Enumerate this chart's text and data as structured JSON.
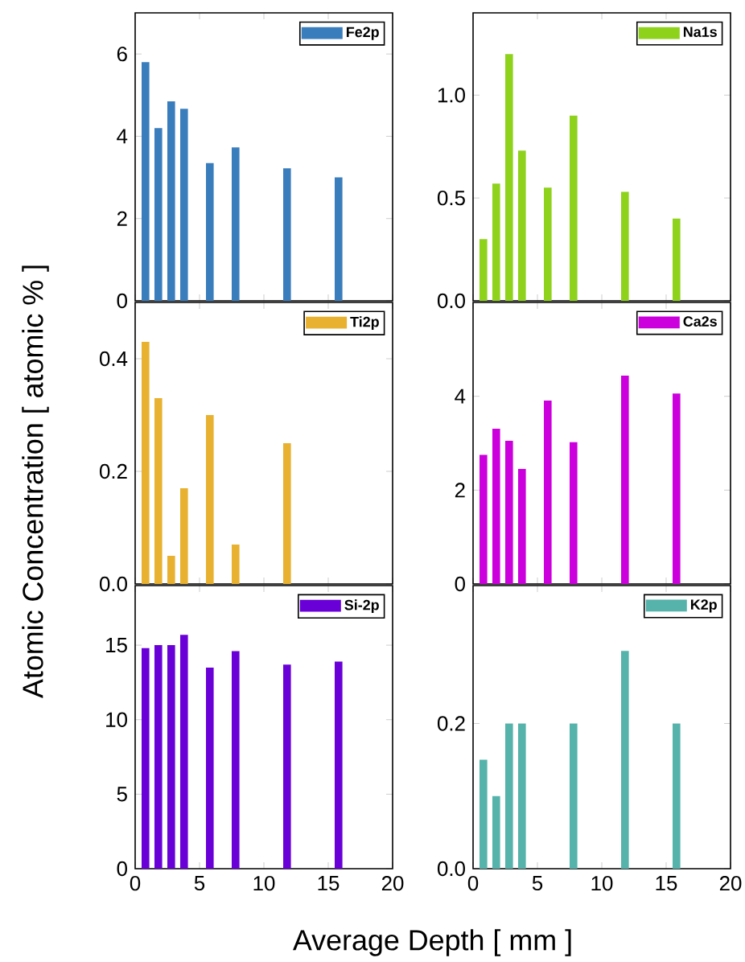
{
  "chart_data": [
    {
      "type": "bar",
      "x": [
        0.8,
        1.8,
        2.8,
        3.8,
        5.8,
        7.8,
        11.8,
        15.8
      ],
      "xlim": [
        0,
        20
      ],
      "xticks": [
        0,
        5,
        10,
        15,
        20
      ],
      "ylim": [
        0,
        7
      ],
      "yticks": [
        0,
        2,
        4,
        6
      ],
      "tick_labels": "y",
      "legend": "top right",
      "series": [
        {
          "name": "Fe2p",
          "color": "#3a7dbd",
          "values": [
            5.8,
            4.2,
            4.85,
            4.67,
            3.35,
            3.73,
            3.22,
            3.0
          ]
        }
      ]
    },
    {
      "type": "bar",
      "x": [
        0.8,
        1.8,
        2.8,
        3.8,
        5.8,
        7.8,
        11.8,
        15.8
      ],
      "xlim": [
        0,
        20
      ],
      "xticks": [
        0,
        5,
        10,
        15,
        20
      ],
      "ylim": [
        0,
        1.4
      ],
      "yticks": [
        {
          "value": 0,
          "label": "0.0"
        },
        {
          "value": 0.5,
          "label": "0.5"
        },
        {
          "value": 1,
          "label": "1.0"
        }
      ],
      "tick_labels": "y",
      "legend": "top right",
      "series": [
        {
          "name": "Na1s",
          "color": "#8ed21c",
          "values": [
            0.3,
            0.57,
            1.2,
            0.73,
            0.55,
            0.9,
            0.53,
            0.4
          ]
        }
      ]
    },
    {
      "type": "bar",
      "xlim": [
        0,
        20
      ],
      "xticks": [
        0,
        5,
        10,
        15,
        20
      ],
      "ylim": [
        0,
        0.5
      ],
      "yticks": [
        {
          "value": 0,
          "label": "0.0"
        },
        {
          "value": 0.2,
          "label": "0.2"
        },
        {
          "value": 0.4,
          "label": "0.4"
        }
      ],
      "tick_labels": "y",
      "legend": "top right",
      "ylabel": "Atomic Concentration [ atomic % ]",
      "series": [
        {
          "name": "Ti2p",
          "color": "#e8b130",
          "x": [
            0.8,
            1.8,
            2.8,
            3.8,
            5.8,
            7.8,
            11.8
          ],
          "values": [
            0.43,
            0.33,
            0.05,
            0.17,
            0.3,
            0.07,
            0.25
          ]
        }
      ]
    },
    {
      "type": "bar",
      "x": [
        0.8,
        1.8,
        2.8,
        3.8,
        5.8,
        7.8,
        11.8,
        15.8
      ],
      "xlim": [
        0,
        20
      ],
      "xticks": [
        0,
        5,
        10,
        15,
        20
      ],
      "ylim": [
        0,
        6
      ],
      "yticks": [
        0,
        2,
        4
      ],
      "tick_labels": "y",
      "legend": "top right",
      "series": [
        {
          "name": "Ca2s",
          "color": "#cc00dd",
          "values": [
            2.75,
            3.31,
            3.05,
            2.45,
            3.91,
            3.02,
            4.44,
            4.06
          ]
        }
      ]
    },
    {
      "type": "bar",
      "x": [
        0.8,
        1.8,
        2.8,
        3.8,
        5.8,
        7.8,
        11.8,
        15.8
      ],
      "xlim": [
        0,
        20
      ],
      "xticks": [
        0,
        5,
        10,
        15,
        20
      ],
      "ylim": [
        0,
        19
      ],
      "yticks": [
        0,
        5,
        10,
        15
      ],
      "legend": "top right",
      "xlabel": "Average Depth [ mm ]",
      "series": [
        {
          "name": "Si-2p",
          "color": "#6a00d8",
          "values": [
            14.8,
            15.0,
            15.0,
            15.7,
            13.5,
            14.6,
            13.7,
            13.9
          ]
        }
      ]
    },
    {
      "type": "bar",
      "x": [
        0.8,
        1.8,
        2.8,
        3.8,
        5.8,
        7.8,
        11.8,
        15.8
      ],
      "xlim": [
        0,
        20
      ],
      "xticks": [
        0,
        5,
        10,
        15,
        20
      ],
      "ylim": [
        0,
        0.39
      ],
      "yticks": [
        {
          "value": 0,
          "label": "0.0"
        },
        {
          "value": 0.2,
          "label": "0.2"
        }
      ],
      "legend": "top right",
      "series": [
        {
          "name": "K2p",
          "color": "#55b3ab",
          "values": [
            0.15,
            0.1,
            0.2,
            0.2,
            null,
            0.2,
            0.3,
            0.2
          ]
        }
      ]
    }
  ]
}
